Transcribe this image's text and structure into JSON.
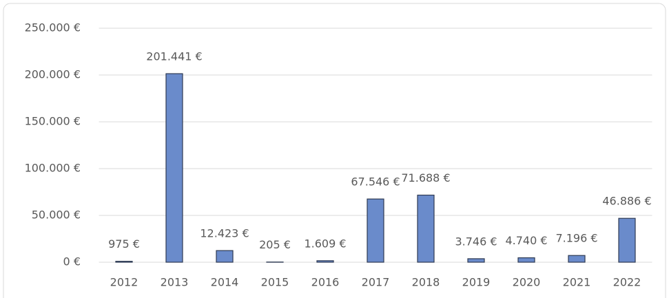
{
  "chart_data": {
    "type": "bar",
    "categories": [
      "2012",
      "2013",
      "2014",
      "2015",
      "2016",
      "2017",
      "2018",
      "2019",
      "2020",
      "2021",
      "2022"
    ],
    "values": [
      975,
      201441,
      12423,
      205,
      1609,
      67546,
      71688,
      3746,
      4740,
      7196,
      46886
    ],
    "value_labels": [
      "975 €",
      "201.441 €",
      "12.423 €",
      "205 €",
      "1.609 €",
      "67.546 €",
      "71.688 €",
      "3.746 €",
      "4.740 €",
      "7.196 €",
      "46.886 €"
    ],
    "color": "#6a8bcb",
    "ylim": [
      0,
      250000
    ],
    "yticks": [
      {
        "value": 0,
        "label": "0 €"
      },
      {
        "value": 50000,
        "label": "50.000 €"
      },
      {
        "value": 100000,
        "label": "100.000 €"
      },
      {
        "value": 150000,
        "label": "150.000 €"
      },
      {
        "value": 200000,
        "label": "200.000 €"
      },
      {
        "value": 250000,
        "label": "250.000 €"
      }
    ],
    "grid": true
  }
}
